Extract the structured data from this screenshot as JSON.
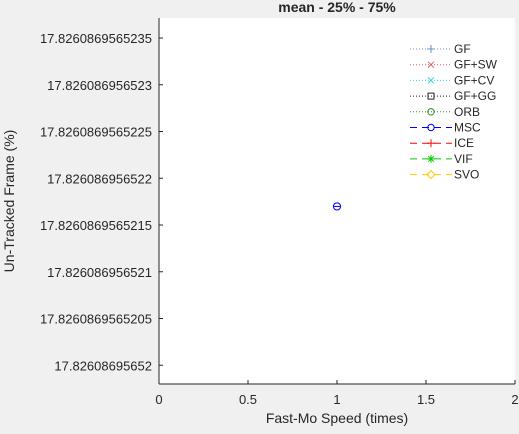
{
  "figure": {
    "background": "#f0f0f0",
    "axes_background": "#ffffff",
    "axis_color": "#262626"
  },
  "chart_data": {
    "type": "scatter",
    "title": "mean - 25% - 75%",
    "xlabel": "Fast-Mo Speed (times)",
    "ylabel": "Un-Tracked Frame (%)",
    "xlim": [
      0,
      2
    ],
    "x_ticks": [
      0,
      0.5,
      1,
      1.5,
      2
    ],
    "x_tick_labels": [
      "0",
      "0.5",
      "1",
      "1.5",
      "2"
    ],
    "y_tick_labels": [
      "17.8260869565235",
      "17.826086956523",
      "17.8260869565225",
      "17.826086956522",
      "17.8260869565215",
      "17.826086956521",
      "17.8260869565205",
      "17.82608695652"
    ],
    "grid": false,
    "legend_position": "top-right",
    "series": [
      {
        "name": "GF",
        "color": "#6b8cc4",
        "line": "dotted",
        "marker": "plus",
        "x": [],
        "y": []
      },
      {
        "name": "GF+SW",
        "color": "#e05a5a",
        "line": "dotted",
        "marker": "x",
        "x": [],
        "y": []
      },
      {
        "name": "GF+CV",
        "color": "#3dd6d6",
        "line": "dotted",
        "marker": "x",
        "x": [],
        "y": []
      },
      {
        "name": "GF+GG",
        "color": "#262626",
        "line": "dotted",
        "marker": "square",
        "x": [],
        "y": []
      },
      {
        "name": "ORB",
        "color": "#2a8a2a",
        "line": "dotted",
        "marker": "circle",
        "x": [],
        "y": []
      },
      {
        "name": "MSC",
        "color": "#0000ff",
        "line": "dashed",
        "marker": "circle",
        "x": [
          1
        ],
        "y": [
          17.8260869565217
        ]
      },
      {
        "name": "ICE",
        "color": "#ff0000",
        "line": "dashed",
        "marker": "plus",
        "x": [],
        "y": []
      },
      {
        "name": "VIF",
        "color": "#00cc00",
        "line": "dashed",
        "marker": "asterisk",
        "x": [],
        "y": []
      },
      {
        "name": "SVO",
        "color": "#ffcc00",
        "line": "dashed",
        "marker": "diamond",
        "x": [],
        "y": []
      }
    ]
  }
}
